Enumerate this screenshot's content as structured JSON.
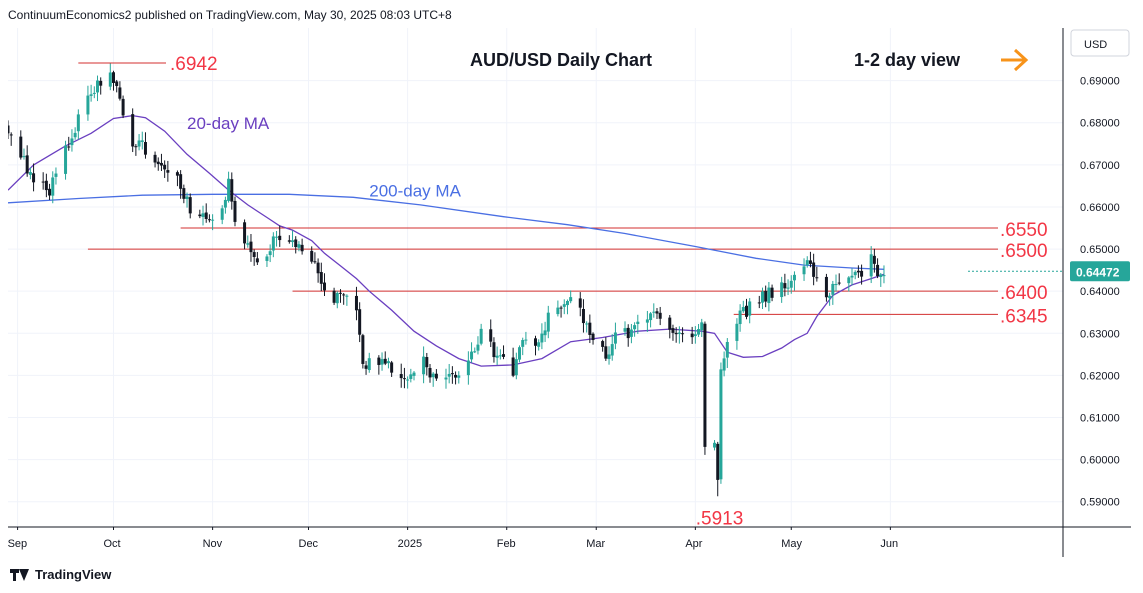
{
  "header": {
    "attribution": "ContinuumEconomics2 published on TradingView.com, May 30, 2025 08:03 UTC+8"
  },
  "footer": {
    "brand": "TradingView"
  },
  "chart_data": {
    "type": "candlestick",
    "title": "AUD/USD Daily Chart",
    "view_label": "1-2 day view",
    "view_icon": "arrow-right-icon",
    "currency": "USD",
    "last_price": "0.64472",
    "colors": {
      "up": "#26a69a",
      "down": "#131722",
      "level_text": "#f23645",
      "ma20": "#6a3fc0",
      "ma200": "#4a6fe3",
      "arrow": "#f7931a",
      "price_tag": "#26a69a"
    },
    "ylim": [
      0.584,
      0.7025
    ],
    "y_ticks": [
      "0.69000",
      "0.68000",
      "0.67000",
      "0.66000",
      "0.65000",
      "0.64000",
      "0.63000",
      "0.62000",
      "0.61000",
      "0.60000",
      "0.59000"
    ],
    "x_ticks": [
      {
        "label": "Sep",
        "date": "2024-09-01"
      },
      {
        "label": "Oct",
        "date": "2024-10-01"
      },
      {
        "label": "Nov",
        "date": "2024-11-01"
      },
      {
        "label": "Dec",
        "date": "2024-12-01"
      },
      {
        "label": "2025",
        "date": "2025-01-01"
      },
      {
        "label": "Feb",
        "date": "2025-02-01"
      },
      {
        "label": "Mar",
        "date": "2025-03-01"
      },
      {
        "label": "Apr",
        "date": "2025-04-01"
      },
      {
        "label": "May",
        "date": "2025-05-01"
      },
      {
        "label": "Jun",
        "date": "2025-06-01"
      }
    ],
    "xlim": [
      "2024-08-29",
      "2025-07-25"
    ],
    "levels": [
      {
        "label": ".6550",
        "value": 0.655,
        "from": "2024-10-22"
      },
      {
        "label": ".6500",
        "value": 0.65,
        "from": "2024-09-23"
      },
      {
        "label": ".6400",
        "value": 0.64,
        "from": "2024-11-26"
      },
      {
        "label": ".6345",
        "value": 0.6345,
        "from": "2025-04-13"
      }
    ],
    "annotations": [
      {
        "label": ".6942",
        "value": 0.6942,
        "date": "2024-09-30",
        "line_from": "2024-09-20"
      },
      {
        "label": ".5913",
        "value": 0.5913,
        "date": "2025-04-08"
      }
    ],
    "series_labels": [
      {
        "name": "20-day MA",
        "date": "2024-10-24",
        "value": 0.6785
      },
      {
        "name": "200-day MA",
        "date": "2024-12-20",
        "value": 0.6625
      }
    ],
    "waypoints": [
      [
        "2024-08-29",
        0.679
      ],
      [
        "2024-09-06",
        0.666
      ],
      [
        "2024-09-11",
        0.6635
      ],
      [
        "2024-09-17",
        0.6755
      ],
      [
        "2024-09-24",
        0.688
      ],
      [
        "2024-09-30",
        0.6915
      ],
      [
        "2024-10-03",
        0.685
      ],
      [
        "2024-10-07",
        0.6755
      ],
      [
        "2024-10-11",
        0.674
      ],
      [
        "2024-10-16",
        0.669
      ],
      [
        "2024-10-21",
        0.668
      ],
      [
        "2024-10-25",
        0.659
      ],
      [
        "2024-10-30",
        0.6575
      ],
      [
        "2024-11-04",
        0.6595
      ],
      [
        "2024-11-06",
        0.6655
      ],
      [
        "2024-11-08",
        0.657
      ],
      [
        "2024-11-12",
        0.65
      ],
      [
        "2024-11-15",
        0.6465
      ],
      [
        "2024-11-20",
        0.652
      ],
      [
        "2024-11-25",
        0.651
      ],
      [
        "2024-11-29",
        0.65
      ],
      [
        "2024-12-03",
        0.646
      ],
      [
        "2024-12-06",
        0.64
      ],
      [
        "2024-12-11",
        0.638
      ],
      [
        "2024-12-16",
        0.6365
      ],
      [
        "2024-12-18",
        0.6225
      ],
      [
        "2024-12-23",
        0.624
      ],
      [
        "2024-12-31",
        0.619
      ],
      [
        "2025-01-06",
        0.623
      ],
      [
        "2025-01-10",
        0.618
      ],
      [
        "2025-01-14",
        0.6205
      ],
      [
        "2025-01-17",
        0.62
      ],
      [
        "2025-01-20",
        0.622
      ],
      [
        "2025-01-24",
        0.6305
      ],
      [
        "2025-01-29",
        0.624
      ],
      [
        "2025-02-03",
        0.621
      ],
      [
        "2025-02-06",
        0.628
      ],
      [
        "2025-02-12",
        0.6285
      ],
      [
        "2025-02-14",
        0.6355
      ],
      [
        "2025-02-18",
        0.6365
      ],
      [
        "2025-02-21",
        0.6395
      ],
      [
        "2025-02-26",
        0.6325
      ],
      [
        "2025-03-04",
        0.624
      ],
      [
        "2025-03-07",
        0.631
      ],
      [
        "2025-03-12",
        0.63
      ],
      [
        "2025-03-17",
        0.6345
      ],
      [
        "2025-03-19",
        0.636
      ],
      [
        "2025-03-24",
        0.632
      ],
      [
        "2025-03-28",
        0.63
      ],
      [
        "2025-04-01",
        0.629
      ],
      [
        "2025-04-03",
        0.631
      ],
      [
        "2025-04-04",
        0.604
      ],
      [
        "2025-04-07",
        0.603
      ],
      [
        "2025-04-08",
        0.596
      ],
      [
        "2025-04-09",
        0.62
      ],
      [
        "2025-04-11",
        0.627
      ],
      [
        "2025-04-15",
        0.634
      ],
      [
        "2025-04-21",
        0.638
      ],
      [
        "2025-04-25",
        0.64
      ],
      [
        "2025-04-30",
        0.641
      ],
      [
        "2025-05-02",
        0.645
      ],
      [
        "2025-05-06",
        0.6465
      ],
      [
        "2025-05-09",
        0.643
      ],
      [
        "2025-05-12",
        0.638
      ],
      [
        "2025-05-15",
        0.642
      ],
      [
        "2025-05-19",
        0.644
      ],
      [
        "2025-05-22",
        0.643
      ],
      [
        "2025-05-26",
        0.649
      ],
      [
        "2025-05-28",
        0.644
      ],
      [
        "2025-05-30",
        0.6447
      ]
    ],
    "ma20_path": [
      [
        "2024-08-29",
        0.664
      ],
      [
        "2024-09-06",
        0.67
      ],
      [
        "2024-09-16",
        0.6745
      ],
      [
        "2024-09-24",
        0.6775
      ],
      [
        "2024-10-01",
        0.681
      ],
      [
        "2024-10-07",
        0.6817
      ],
      [
        "2024-10-11",
        0.6812
      ],
      [
        "2024-10-17",
        0.678
      ],
      [
        "2024-10-24",
        0.6725
      ],
      [
        "2024-10-31",
        0.668
      ],
      [
        "2024-11-06",
        0.664
      ],
      [
        "2024-11-12",
        0.6605
      ],
      [
        "2024-11-18",
        0.6575
      ],
      [
        "2024-11-22",
        0.6555
      ],
      [
        "2024-11-26",
        0.6545
      ],
      [
        "2024-12-02",
        0.652
      ],
      [
        "2024-12-06",
        0.649
      ],
      [
        "2024-12-11",
        0.646
      ],
      [
        "2024-12-16",
        0.643
      ],
      [
        "2024-12-20",
        0.64
      ],
      [
        "2024-12-27",
        0.6355
      ],
      [
        "2025-01-03",
        0.6305
      ],
      [
        "2025-01-10",
        0.627
      ],
      [
        "2025-01-17",
        0.624
      ],
      [
        "2025-01-24",
        0.6222
      ],
      [
        "2025-02-03",
        0.6225
      ],
      [
        "2025-02-12",
        0.624
      ],
      [
        "2025-02-21",
        0.628
      ],
      [
        "2025-03-03",
        0.629
      ],
      [
        "2025-03-14",
        0.6305
      ],
      [
        "2025-03-24",
        0.631
      ],
      [
        "2025-04-03",
        0.6305
      ],
      [
        "2025-04-07",
        0.63
      ],
      [
        "2025-04-11",
        0.6255
      ],
      [
        "2025-04-16",
        0.6243
      ],
      [
        "2025-04-22",
        0.6245
      ],
      [
        "2025-04-28",
        0.6265
      ],
      [
        "2025-05-02",
        0.6285
      ],
      [
        "2025-05-06",
        0.63
      ],
      [
        "2025-05-09",
        0.634
      ],
      [
        "2025-05-14",
        0.639
      ],
      [
        "2025-05-20",
        0.6415
      ],
      [
        "2025-05-26",
        0.643
      ],
      [
        "2025-05-30",
        0.644
      ]
    ],
    "ma200_path": [
      [
        "2024-08-29",
        0.661
      ],
      [
        "2024-09-20",
        0.662
      ],
      [
        "2024-10-10",
        0.6628
      ],
      [
        "2024-11-01",
        0.663
      ],
      [
        "2024-11-25",
        0.663
      ],
      [
        "2024-12-15",
        0.6623
      ],
      [
        "2025-01-05",
        0.6605
      ],
      [
        "2025-01-31",
        0.6577
      ],
      [
        "2025-02-20",
        0.6558
      ],
      [
        "2025-03-10",
        0.6537
      ],
      [
        "2025-04-01",
        0.6506
      ],
      [
        "2025-04-20",
        0.6478
      ],
      [
        "2025-05-05",
        0.6462
      ],
      [
        "2025-05-20",
        0.6455
      ],
      [
        "2025-05-30",
        0.6452
      ]
    ]
  }
}
